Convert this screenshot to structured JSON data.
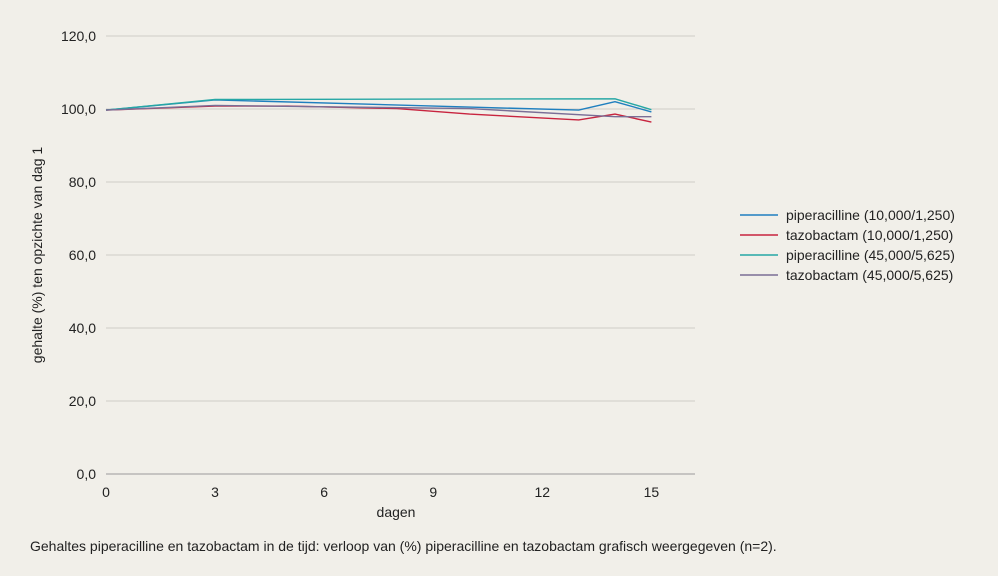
{
  "chart_data": {
    "type": "line",
    "xlabel": "dagen",
    "ylabel": "gehalte (%) ten opzichte van dag 1",
    "xticks": [
      "0",
      "3",
      "6",
      "9",
      "12",
      "15"
    ],
    "xtick_values": [
      0,
      3,
      6,
      9,
      12,
      15
    ],
    "yticks": [
      "0,0",
      "20,0",
      "40,0",
      "60,0",
      "80,0",
      "100,0",
      "120,0"
    ],
    "ytick_values": [
      0,
      20,
      40,
      60,
      80,
      100,
      120
    ],
    "xlim": [
      0,
      16.2
    ],
    "ylim": [
      0,
      120
    ],
    "grid": true,
    "legend_position": "right",
    "series": [
      {
        "name": "piperacilline (10,000/1,250)",
        "color": "#1f7fbf",
        "x": [
          0,
          3,
          13,
          14,
          15
        ],
        "y": [
          99.7,
          102.5,
          99.7,
          102.0,
          99.2
        ]
      },
      {
        "name": "tazobactam (10,000/1,250)",
        "color": "#c8243f",
        "x": [
          0,
          3,
          5,
          8,
          10,
          13,
          14,
          15
        ],
        "y": [
          99.7,
          100.8,
          100.8,
          100.1,
          98.6,
          97.0,
          98.6,
          96.4
        ]
      },
      {
        "name": "piperacilline (45,000/5,625)",
        "color": "#26a7a5",
        "x": [
          0,
          3,
          14,
          15
        ],
        "y": [
          99.7,
          102.6,
          102.8,
          99.8
        ]
      },
      {
        "name": "tazobactam (45,000/5,625)",
        "color": "#7a6e96",
        "x": [
          0,
          3,
          10,
          14,
          15
        ],
        "y": [
          99.7,
          101.0,
          100.1,
          97.9,
          97.9
        ]
      }
    ]
  },
  "caption": "Gehaltes piperacilline en tazobactam in de tijd: verloop van (%) piperacilline en tazobactam grafisch weergegeven (n=2)."
}
